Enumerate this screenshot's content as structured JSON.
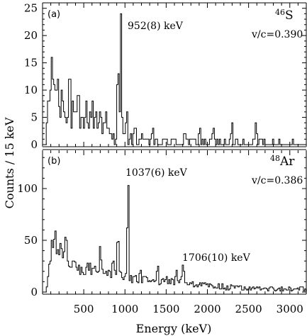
{
  "chart_data": {
    "type": "line",
    "ylabel": "Counts / 15 keV",
    "xlabel": "Energy (keV)",
    "xlim": [
      0,
      3200
    ],
    "x_ticks": [
      500,
      1000,
      1500,
      2000,
      2500,
      3000
    ],
    "bin_width_keV": 15,
    "panels": [
      {
        "tag": "(a)",
        "isotope_mass": "46",
        "isotope_symbol": "S",
        "velocity": "v/c=0.390",
        "ylim": [
          0,
          26
        ],
        "y_ticks": [
          0,
          5,
          10,
          15,
          20,
          25
        ],
        "annotations": [
          {
            "text": "952(8) keV",
            "energy": 952
          }
        ],
        "peaks": [
          {
            "center": 952,
            "height": 22,
            "sigma": 8
          }
        ],
        "background": [
          [
            0,
            0
          ],
          [
            40,
            0
          ],
          [
            60,
            7
          ],
          [
            120,
            9
          ],
          [
            160,
            7
          ],
          [
            200,
            6
          ],
          [
            260,
            6
          ],
          [
            350,
            5
          ],
          [
            450,
            4
          ],
          [
            550,
            4
          ],
          [
            650,
            4
          ],
          [
            760,
            3
          ],
          [
            850,
            1
          ],
          [
            920,
            2
          ],
          [
            1000,
            1.5
          ],
          [
            1100,
            0.8
          ],
          [
            1300,
            0.6
          ],
          [
            1500,
            0.5
          ],
          [
            1800,
            0.4
          ],
          [
            2200,
            0.3
          ],
          [
            2800,
            0.15
          ],
          [
            3200,
            0
          ]
        ],
        "features": [
          [
            100,
            12
          ],
          [
            120,
            13
          ],
          [
            150,
            11
          ],
          [
            175,
            10
          ],
          [
            200,
            9
          ],
          [
            235,
            9
          ],
          [
            265,
            8
          ],
          [
            330,
            11
          ],
          [
            380,
            6
          ],
          [
            440,
            7
          ],
          [
            520,
            7
          ],
          [
            600,
            7
          ],
          [
            640,
            6
          ],
          [
            700,
            7
          ],
          [
            770,
            4
          ],
          [
            920,
            11
          ],
          [
            1020,
            4
          ],
          [
            1120,
            3
          ],
          [
            1200,
            2
          ],
          [
            1330,
            3
          ],
          [
            1720,
            3
          ],
          [
            1900,
            3
          ],
          [
            2070,
            2
          ],
          [
            2300,
            3
          ],
          [
            2590,
            3
          ],
          [
            2650,
            2
          ],
          [
            3050,
            1
          ]
        ]
      },
      {
        "tag": "(b)",
        "isotope_mass": "48",
        "isotope_symbol": "Ar",
        "velocity": "v/c=0.386",
        "ylim": [
          0,
          137
        ],
        "y_ticks": [
          0,
          50,
          100
        ],
        "annotations": [
          {
            "text": "1037(6) keV",
            "energy": 1037
          },
          {
            "text": "1706(10) keV",
            "energy": 1706
          }
        ],
        "peaks": [
          {
            "center": 1037,
            "height": 122,
            "sigma": 7
          },
          {
            "center": 1706,
            "height": 18,
            "sigma": 12
          }
        ],
        "background": [
          [
            0,
            0
          ],
          [
            40,
            0
          ],
          [
            70,
            20
          ],
          [
            110,
            42
          ],
          [
            160,
            45
          ],
          [
            210,
            40
          ],
          [
            260,
            33
          ],
          [
            330,
            26
          ],
          [
            400,
            24
          ],
          [
            500,
            22
          ],
          [
            600,
            23
          ],
          [
            700,
            22
          ],
          [
            760,
            20
          ],
          [
            820,
            18
          ],
          [
            900,
            16
          ],
          [
            1000,
            14
          ],
          [
            1100,
            13
          ],
          [
            1200,
            12
          ],
          [
            1300,
            11
          ],
          [
            1450,
            11
          ],
          [
            1600,
            10
          ],
          [
            1800,
            8
          ],
          [
            2000,
            6
          ],
          [
            2200,
            5
          ],
          [
            2500,
            4
          ],
          [
            2800,
            3.5
          ],
          [
            3200,
            3
          ]
        ],
        "features": [
          [
            150,
            58
          ],
          [
            220,
            42
          ],
          [
            290,
            50
          ],
          [
            380,
            32
          ],
          [
            700,
            38
          ],
          [
            860,
            33
          ],
          [
            920,
            45
          ],
          [
            1180,
            18
          ],
          [
            1400,
            20
          ],
          [
            1620,
            18
          ]
        ]
      }
    ]
  }
}
